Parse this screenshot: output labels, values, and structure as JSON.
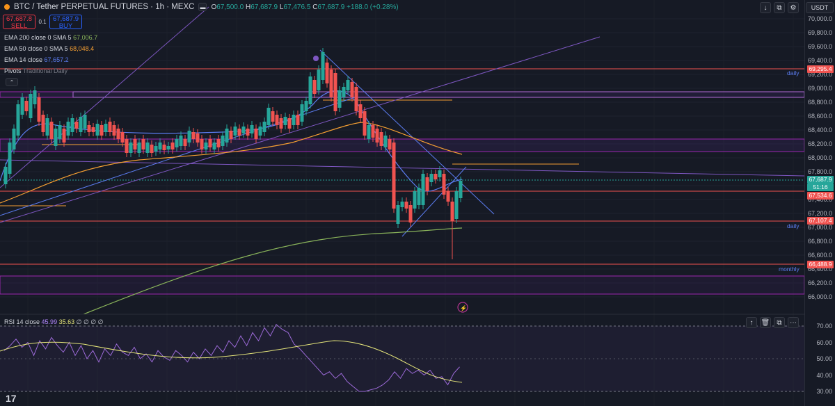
{
  "header": {
    "title": "BTC / Tether PERPETUAL FUTURES · 1h · MEXC",
    "ohlc": {
      "o_label": "O",
      "o": "67,500.0",
      "h_label": "H",
      "h": "67,687.9",
      "l_label": "L",
      "l": "67,476.5",
      "c_label": "C",
      "c": "67,687.9",
      "change": "+188.0 (+0.28%)"
    }
  },
  "trade": {
    "sell_price": "67,687.8",
    "sell_label": "SELL",
    "spread": "0.1",
    "buy_price": "67,687.9",
    "buy_label": "BUY"
  },
  "indicators": [
    {
      "name": "EMA 200 close 0 SMA 5",
      "value": "67,006.7",
      "color": "#89b35a"
    },
    {
      "name": "EMA 50 close 0 SMA 5",
      "value": "68,048.4",
      "color": "#f59f32"
    },
    {
      "name": "EMA 14 close",
      "value": "67,657.2",
      "color": "#5b7cf0"
    },
    {
      "name": "Pivots",
      "params": "Traditional Daily",
      "value": ""
    }
  ],
  "symbol_currency": "USDT",
  "price_axis": [
    "70,000.0",
    "69,800.0",
    "69,600.0",
    "69,400.0",
    "69,200.0",
    "69,000.0",
    "68,800.0",
    "68,600.0",
    "68,400.0",
    "68,200.0",
    "68,000.0",
    "67,800.0",
    "67,600.0",
    "67,400.0",
    "67,200.0",
    "67,000.0",
    "66,800.0",
    "66,600.0",
    "66,400.0",
    "66,200.0",
    "66,000.0"
  ],
  "price_badges": {
    "current": "67,687.9",
    "countdown": "51:16",
    "level1": "69,295.4",
    "level2": "67,534.6",
    "level3": "67,107.4",
    "level4": "66,488.9"
  },
  "line_labels": {
    "daily_top": "daily",
    "daily_bottom": "daily",
    "monthly": "monthly"
  },
  "rsi": {
    "name": "RSI 14 close",
    "value1": "45.99",
    "value2": "35.63",
    "extras": "∅ ∅ ∅ ∅",
    "axis": [
      "70.00",
      "60.00",
      "50.00",
      "40.00",
      "30.00"
    ]
  },
  "colors": {
    "up": "#26a69a",
    "down": "#f05350",
    "bg": "#161a25"
  },
  "icons": [
    "tradingview-logo-icon",
    "arrow-down-icon",
    "restore-icon",
    "settings-icon"
  ]
}
